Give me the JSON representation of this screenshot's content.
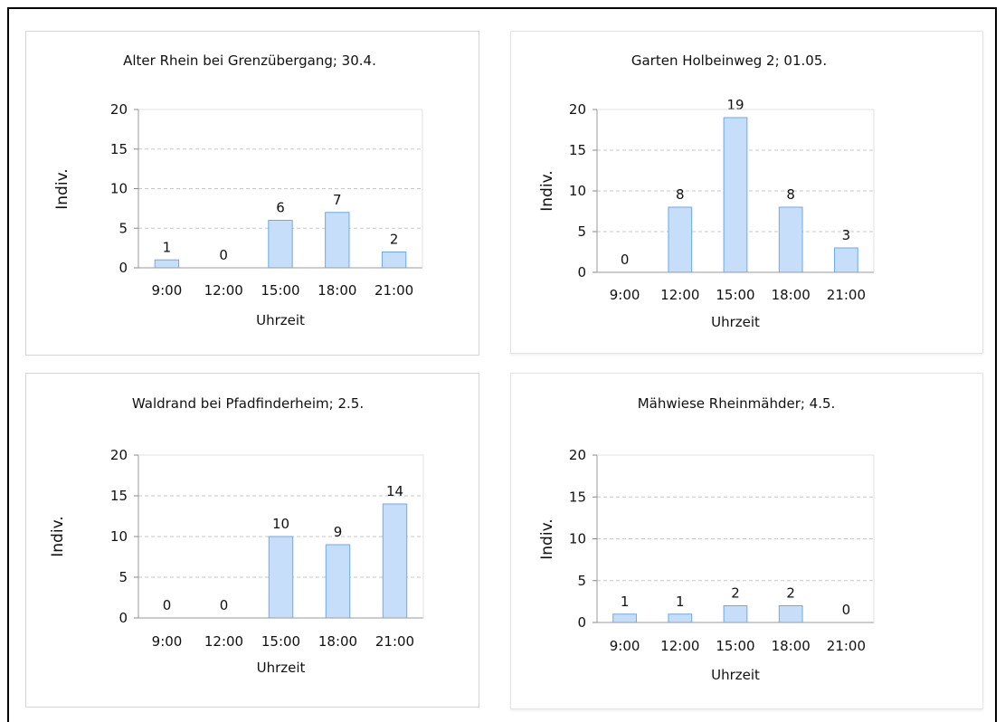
{
  "chart_data": [
    {
      "type": "bar",
      "title": "Alter Rhein bei Grenzübergang; 30.4.",
      "xlabel": "Uhrzeit",
      "ylabel": "Indiv.",
      "categories": [
        "9:00",
        "12:00",
        "15:00",
        "18:00",
        "21:00"
      ],
      "values": [
        1,
        0,
        6,
        7,
        2
      ],
      "ylim": [
        0,
        20
      ],
      "yticks": [
        0,
        5,
        10,
        15,
        20
      ],
      "grid": "dashed-horizontal",
      "bar_color": "#c6defa",
      "bar_border": "#6aaae9"
    },
    {
      "type": "bar",
      "title": "Garten Holbeinweg 2; 01.05.",
      "xlabel": "Uhrzeit",
      "ylabel": "Indiv.",
      "categories": [
        "9:00",
        "12:00",
        "15:00",
        "18:00",
        "21:00"
      ],
      "values": [
        0,
        8,
        19,
        8,
        3
      ],
      "ylim": [
        0,
        20
      ],
      "yticks": [
        0,
        5,
        10,
        15,
        20
      ],
      "grid": "dashed-horizontal",
      "bar_color": "#c6defa",
      "bar_border": "#6aaae9"
    },
    {
      "type": "bar",
      "title": "Waldrand bei Pfadfinderheim; 2.5.",
      "xlabel": "Uhrzeit",
      "ylabel": "Indiv.",
      "categories": [
        "9:00",
        "12:00",
        "15:00",
        "18:00",
        "21:00"
      ],
      "values": [
        0,
        0,
        10,
        9,
        14
      ],
      "ylim": [
        0,
        20
      ],
      "yticks": [
        0,
        5,
        10,
        15,
        20
      ],
      "grid": "dashed-horizontal",
      "bar_color": "#c6defa",
      "bar_border": "#6aaae9"
    },
    {
      "type": "bar",
      "title": "Mähwiese Rheinmähder; 4.5.",
      "xlabel": "Uhrzeit",
      "ylabel": "Indiv.",
      "categories": [
        "9:00",
        "12:00",
        "15:00",
        "18:00",
        "21:00"
      ],
      "values": [
        1,
        1,
        2,
        2,
        0
      ],
      "ylim": [
        0,
        20
      ],
      "yticks": [
        0,
        5,
        10,
        15,
        20
      ],
      "grid": "dashed-horizontal",
      "bar_color": "#c6defa",
      "bar_border": "#6aaae9"
    }
  ]
}
